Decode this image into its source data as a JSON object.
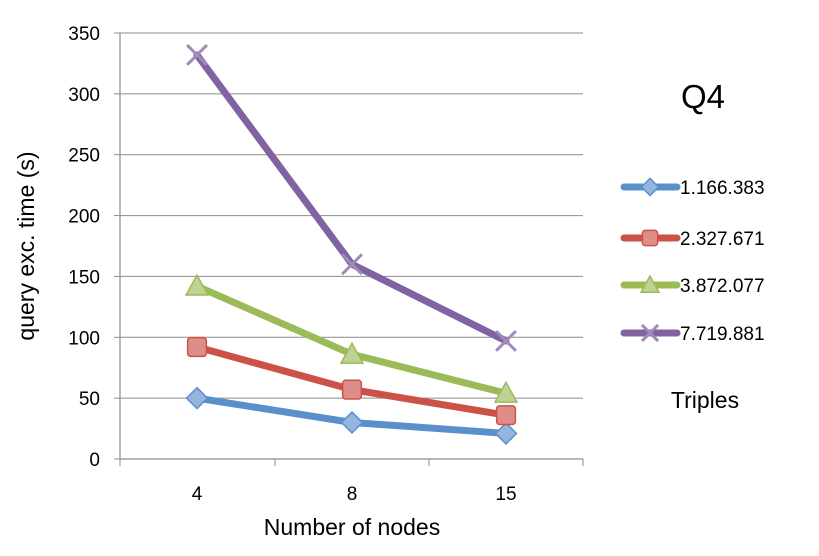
{
  "chart_data": {
    "type": "line",
    "title": "Q4",
    "xlabel": "Number of nodes",
    "ylabel": "query exc. time (s)",
    "categories": [
      "4",
      "8",
      "15"
    ],
    "ylim": [
      0,
      350
    ],
    "yticks": [
      0,
      50,
      100,
      150,
      200,
      250,
      300,
      350
    ],
    "grid": true,
    "legend_position": "right",
    "legend_title": "Triples",
    "series": [
      {
        "name": "1.166.383",
        "values": [
          50,
          30,
          21
        ],
        "color": "#5B8FCC",
        "marker": "diamond"
      },
      {
        "name": "2.327.671",
        "values": [
          92,
          57,
          36
        ],
        "color": "#CC5148",
        "marker": "square"
      },
      {
        "name": "3.872.077",
        "values": [
          142,
          86,
          54
        ],
        "color": "#9BBB59",
        "marker": "triangle"
      },
      {
        "name": "7.719.881",
        "values": [
          332,
          160,
          97
        ],
        "color": "#8064A2",
        "marker": "x"
      }
    ]
  }
}
